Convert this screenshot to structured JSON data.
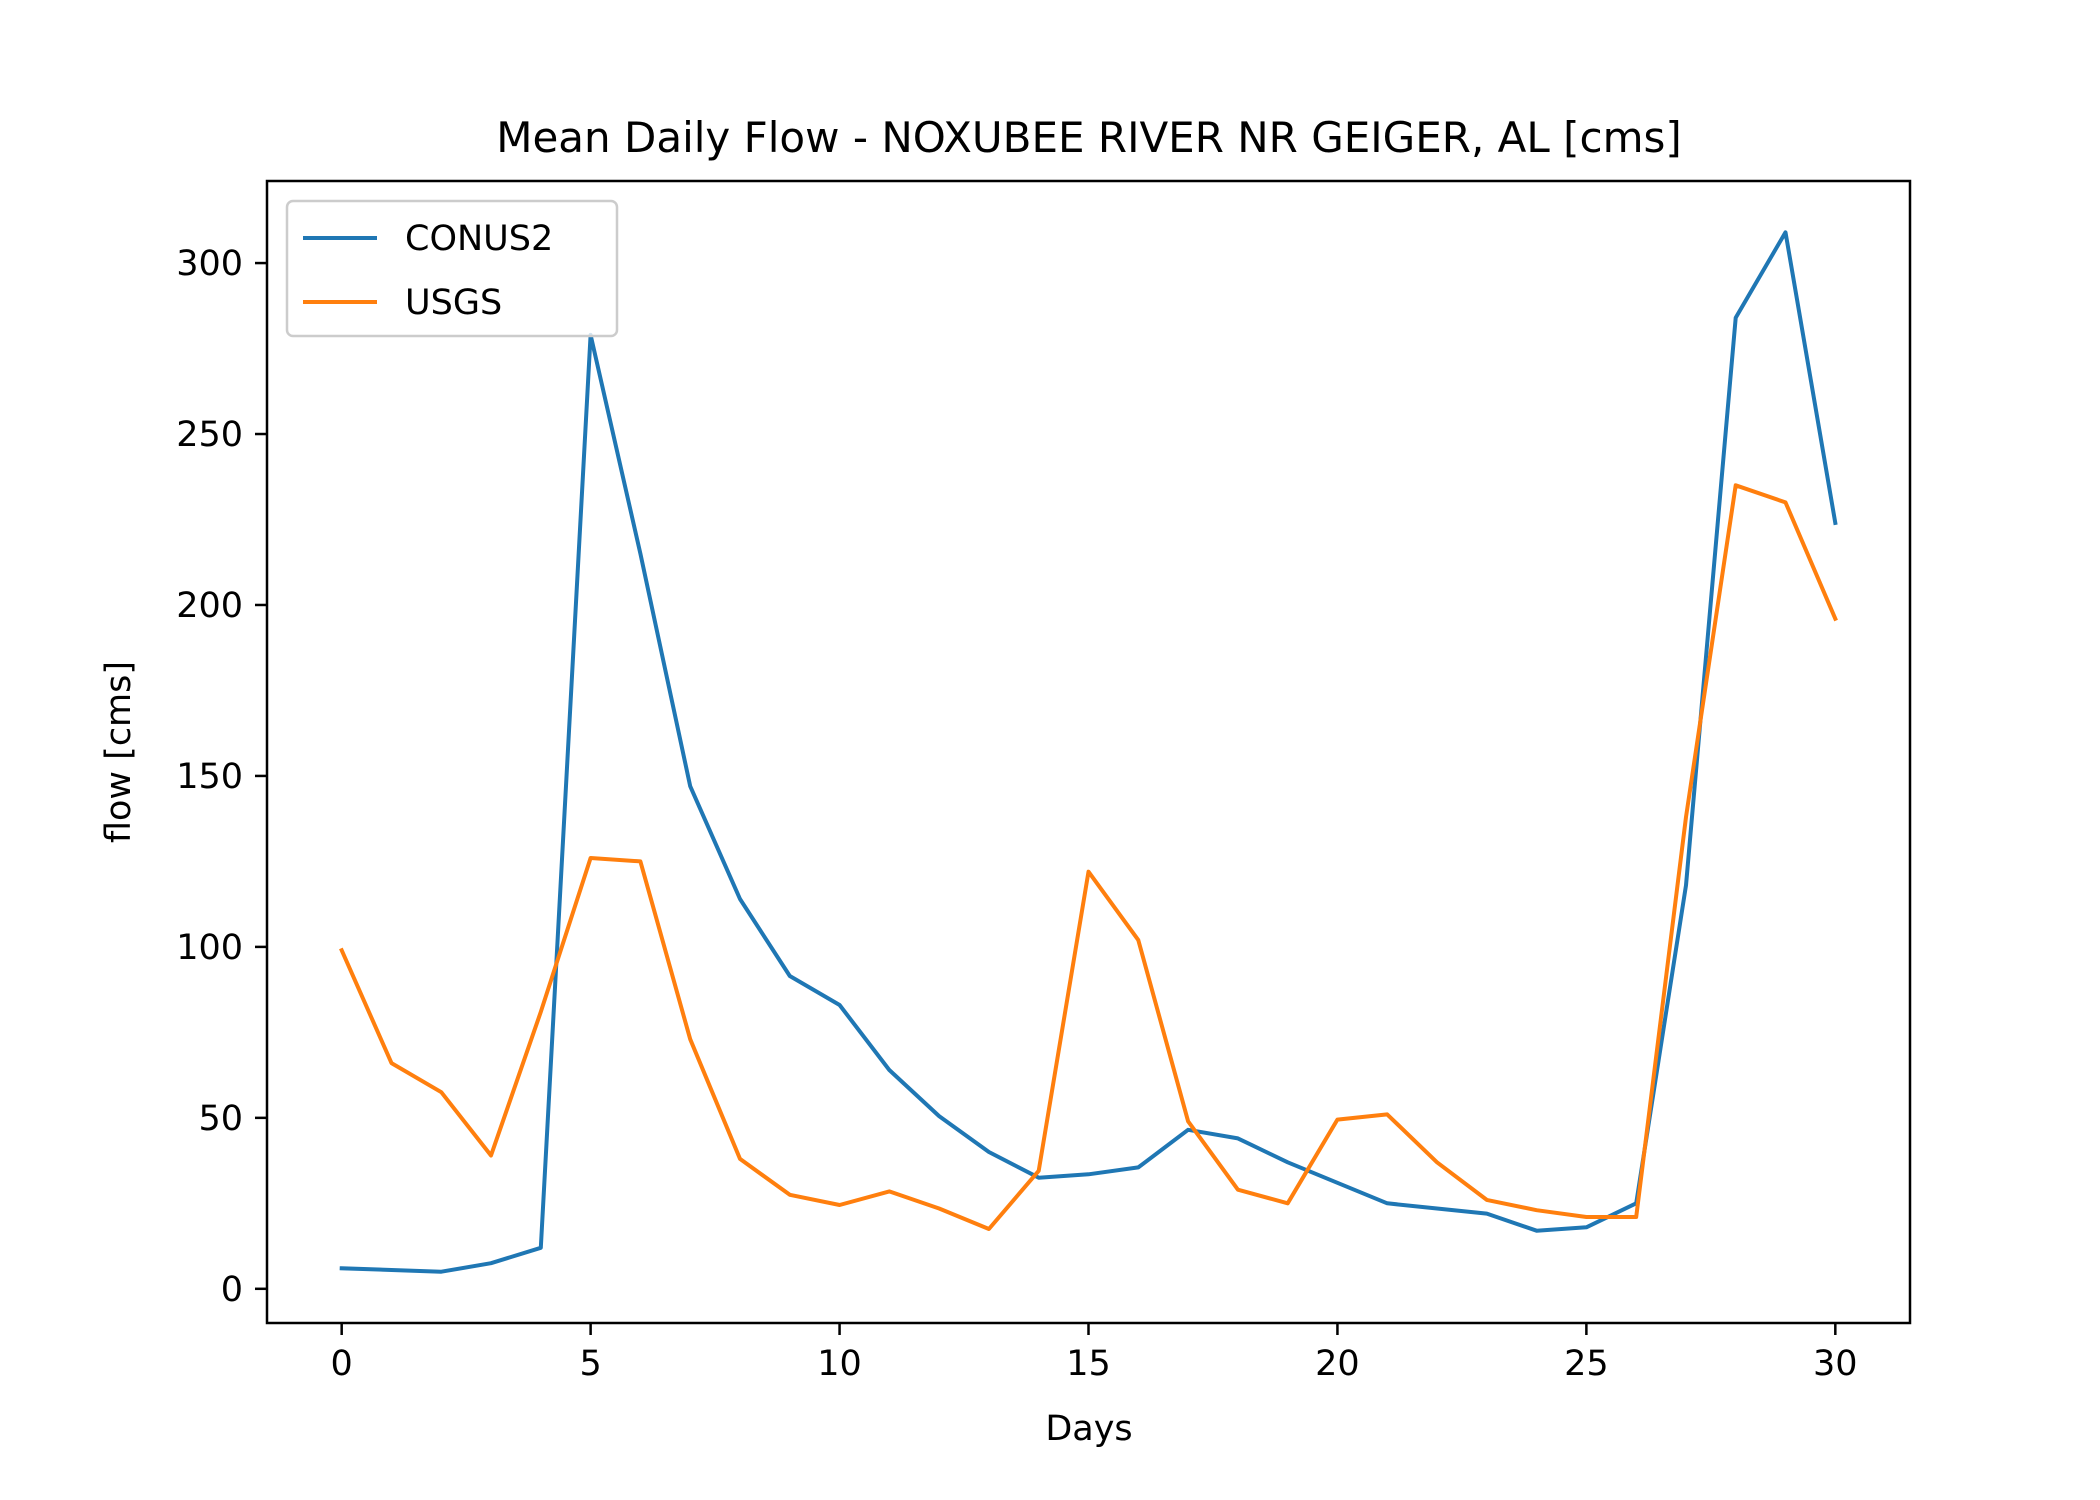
{
  "chart_data": {
    "type": "line",
    "title": "Mean Daily Flow - NOXUBEE RIVER NR GEIGER, AL [cms]",
    "xlabel": "Days",
    "ylabel": "flow [cms]",
    "xlim": [
      -1.5,
      31.5
    ],
    "ylim": [
      -10,
      324
    ],
    "xticks": [
      0,
      5,
      10,
      15,
      20,
      25,
      30
    ],
    "yticks": [
      0,
      50,
      100,
      150,
      200,
      250,
      300
    ],
    "grid": false,
    "legend_position": "top-left",
    "x": [
      0,
      1,
      2,
      3,
      4,
      5,
      6,
      7,
      8,
      9,
      10,
      11,
      12,
      13,
      14,
      15,
      16,
      17,
      18,
      19,
      20,
      21,
      22,
      23,
      24,
      25,
      26,
      27,
      28,
      29,
      30
    ],
    "series": [
      {
        "name": "CONUS2",
        "color": "#1f77b4",
        "values": [
          6,
          5.5,
          5,
          7.5,
          12,
          279,
          215,
          147,
          114,
          91.5,
          83,
          64,
          50.5,
          40,
          32.5,
          33.5,
          35.5,
          46.5,
          44,
          37,
          31,
          25,
          23.5,
          22,
          17,
          18,
          25,
          118,
          284,
          309,
          224
        ]
      },
      {
        "name": "USGS",
        "color": "#ff7f0e",
        "values": [
          99,
          66,
          57.5,
          39,
          81,
          126,
          125,
          73,
          38,
          27.5,
          24.5,
          28.5,
          23.5,
          17.5,
          34.5,
          122,
          102,
          49,
          29,
          25,
          49.5,
          51,
          37,
          26,
          23,
          21,
          21,
          138,
          235,
          230,
          196
        ]
      }
    ]
  }
}
